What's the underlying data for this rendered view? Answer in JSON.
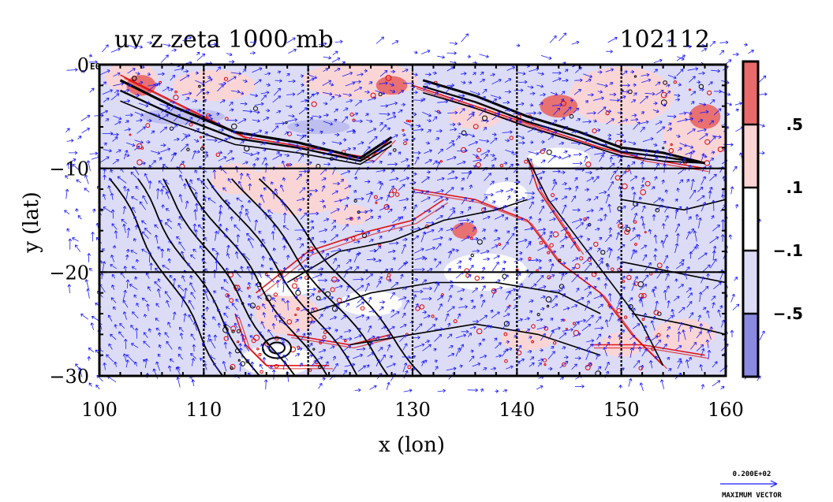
{
  "chart_data": {
    "type": "heatmap",
    "title": "uv z zeta 1000 mb",
    "date_label": "102112",
    "xlabel": "x (lon)",
    "ylabel": "y (lat)",
    "xlim": [
      100,
      160
    ],
    "ylim": [
      -30,
      0
    ],
    "x_ticks": [
      100,
      110,
      120,
      130,
      140,
      150,
      160
    ],
    "y_ticks": [
      0,
      -10,
      -20,
      -30
    ],
    "x_tick_labels": [
      "100",
      "110",
      "120",
      "130",
      "140",
      "150",
      "160"
    ],
    "y_tick_labels": [
      "0",
      "−10",
      "−20",
      "−30"
    ],
    "y_top_suffix": "E0",
    "grid": true,
    "colorbar": {
      "labels": [
        ".5",
        ".1",
        "−.1",
        "−.5"
      ],
      "bands": [
        {
          "range": "> .5",
          "color": "#e86a6a"
        },
        {
          "range": ".1 to .5",
          "color": "#fbd4d4"
        },
        {
          "range": "−.1 to .1",
          "color": "#ffffff"
        },
        {
          "range": "−.5 to −.1",
          "color": "#dcdcf7"
        },
        {
          "range": "< −.5",
          "color": "#8a8ae0"
        }
      ]
    },
    "vector_key": {
      "value": "0.200E+02",
      "label": "MAXIMUM VECTOR"
    },
    "series": [
      {
        "kind": "shaded zeta field",
        "colors": [
          "#e86a6a",
          "#fbd4d4",
          "#dcdcf7",
          "#8a8ae0"
        ]
      },
      {
        "kind": "z contours",
        "color": "#000000"
      },
      {
        "kind": "uv vectors",
        "color": "#1a1aff"
      },
      {
        "kind": "zeta contours",
        "color": "#e00000"
      }
    ]
  }
}
